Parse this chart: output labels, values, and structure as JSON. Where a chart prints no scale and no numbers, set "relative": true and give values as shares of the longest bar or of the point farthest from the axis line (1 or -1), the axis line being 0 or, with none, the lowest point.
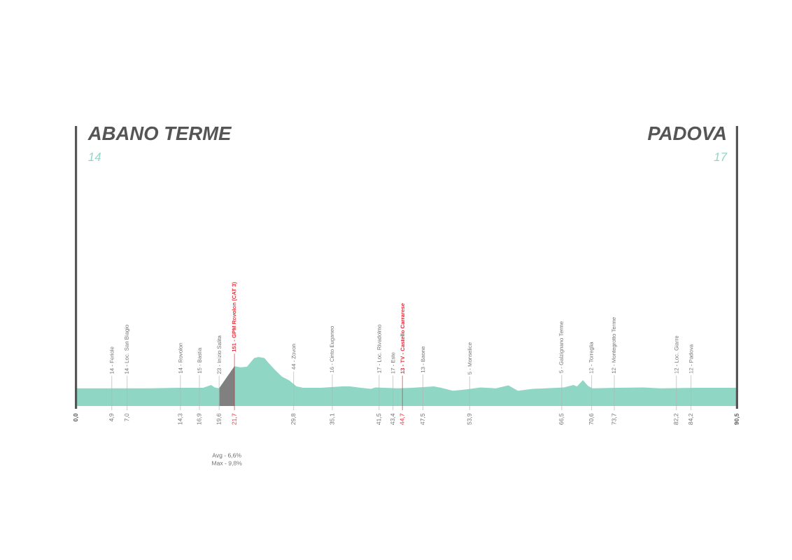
{
  "chart_data": {
    "type": "area",
    "relative": true,
    "tick_labels": "x",
    "xlim": [
      0,
      90.5
    ],
    "xticks": [
      {
        "value": 0,
        "label": "0,0"
      },
      {
        "value": 4.9,
        "label": "4,9"
      },
      {
        "value": 7.0,
        "label": "7,0"
      },
      {
        "value": 14.3,
        "label": "14,3"
      },
      {
        "value": 16.9,
        "label": "16,9"
      },
      {
        "value": 19.6,
        "label": "19,6"
      },
      {
        "value": 21.7,
        "label": "21,7"
      },
      {
        "value": 29.8,
        "label": "29,8"
      },
      {
        "value": 35.1,
        "label": "35,1"
      },
      {
        "value": 41.5,
        "label": "41,5"
      },
      {
        "value": 43.4,
        "label": "43,4"
      },
      {
        "value": 44.7,
        "label": "44,7"
      },
      {
        "value": 47.5,
        "label": "47,5"
      },
      {
        "value": 53.9,
        "label": "53,9"
      },
      {
        "value": 66.5,
        "label": "66,5"
      },
      {
        "value": 70.6,
        "label": "70,6"
      },
      {
        "value": 73.7,
        "label": "73,7"
      },
      {
        "value": 82.2,
        "label": "82,2"
      },
      {
        "value": 84.2,
        "label": "84,2"
      },
      {
        "value": 90.5,
        "label": "90,5"
      }
    ],
    "series": [
      {
        "color": "#8fd6c5",
        "x": [
          0,
          5,
          10,
          14,
          17.4,
          18.5,
          19.0,
          19.6,
          21.7,
          22.5,
          23.4,
          24.4,
          25.0,
          25.8,
          26.3,
          27.3,
          28.2,
          29.2,
          30.2,
          31.1,
          33.5,
          36.5,
          37.5,
          39.0,
          40.4,
          41.0,
          44.0,
          46.0,
          49.0,
          50.0,
          51.6,
          53.5,
          55.4,
          57.5,
          59.2,
          60.5,
          62.5,
          64.3,
          66.8,
          68.1,
          68.6,
          69.4,
          70.1,
          70.7,
          74.0,
          77.7,
          80.0,
          85.0,
          90.5
        ],
        "values": [
          0.36,
          0.36,
          0.36,
          0.37,
          0.37,
          0.43,
          0.38,
          0.36,
          0.81,
          0.79,
          0.8,
          0.98,
          1.0,
          0.98,
          0.89,
          0.73,
          0.6,
          0.52,
          0.4,
          0.37,
          0.37,
          0.4,
          0.4,
          0.37,
          0.35,
          0.38,
          0.36,
          0.37,
          0.4,
          0.37,
          0.31,
          0.34,
          0.38,
          0.36,
          0.42,
          0.31,
          0.35,
          0.36,
          0.38,
          0.43,
          0.4,
          0.53,
          0.41,
          0.36,
          0.37,
          0.38,
          0.36,
          0.37,
          0.37
        ]
      },
      {
        "color": "#808080",
        "x": [
          19.6,
          21.7
        ],
        "values": [
          0.36,
          0.81
        ]
      }
    ],
    "ref_lines": [
      {
        "axis": "x",
        "value": 0,
        "label": "ABANO TERME",
        "color": "#555555"
      },
      {
        "axis": "x",
        "value": 90.5,
        "label": "PADOVA",
        "color": "#555555"
      },
      {
        "axis": "x",
        "value": 4.9,
        "label": "14 - Feriole"
      },
      {
        "axis": "x",
        "value": 7.0,
        "label": "14 - Loc. San Biagio"
      },
      {
        "axis": "x",
        "value": 14.3,
        "label": "14 - Rovolon"
      },
      {
        "axis": "x",
        "value": 16.9,
        "label": "15 - Bastia"
      },
      {
        "axis": "x",
        "value": 19.6,
        "label": "23 - Inizio Salita"
      },
      {
        "axis": "x",
        "value": 21.7,
        "label": "151 - GPM Rovolon (CAT 3)",
        "color": "#e3303a"
      },
      {
        "axis": "x",
        "value": 29.8,
        "label": "44 - Zovon"
      },
      {
        "axis": "x",
        "value": 35.1,
        "label": "16 - Cinto Euganeo"
      },
      {
        "axis": "x",
        "value": 41.5,
        "label": "17 - Loc. Rivadolmo"
      },
      {
        "axis": "x",
        "value": 43.4,
        "label": "17 - Este"
      },
      {
        "axis": "x",
        "value": 44.7,
        "label": "13 - TV - Castello Carrarese",
        "color": "#e3303a"
      },
      {
        "axis": "x",
        "value": 47.5,
        "label": "13 - Baone"
      },
      {
        "axis": "x",
        "value": 53.9,
        "label": "5 - Monselice"
      },
      {
        "axis": "x",
        "value": 66.5,
        "label": "5 - Galzignano Terme"
      },
      {
        "axis": "x",
        "value": 70.6,
        "label": "12 - Torreglia"
      },
      {
        "axis": "x",
        "value": 73.7,
        "label": "12 - Montegrotto Terme"
      },
      {
        "axis": "x",
        "value": 82.2,
        "label": "12 - Loc. Giarre"
      },
      {
        "axis": "x",
        "value": 84.2,
        "label": "12 - Padova"
      }
    ],
    "annotations": [
      {
        "text": "14",
        "x": 0
      },
      {
        "text": "17",
        "x": 90.5
      },
      "Avg - 6,6%",
      "Max - 9,8%"
    ]
  }
}
